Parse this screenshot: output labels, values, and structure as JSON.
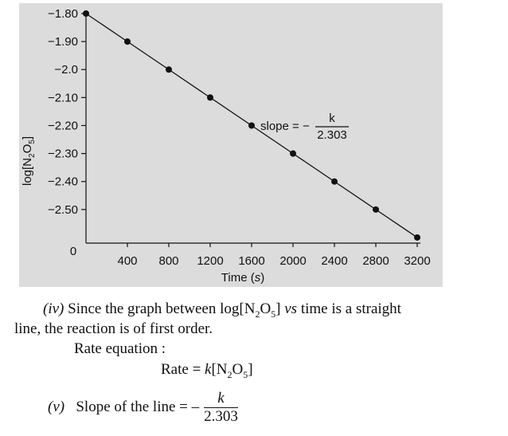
{
  "chart_data": {
    "type": "line",
    "xlabel": "Time (s)",
    "ylabel": "log[N2O5]",
    "x_ticks": [
      "400",
      "800",
      "1200",
      "1600",
      "2000",
      "2400",
      "2800",
      "3200"
    ],
    "y_ticks": [
      "−1.80",
      "−1.90",
      "−2.0",
      "−2.10",
      "−2.20",
      "−2.30",
      "−2.40",
      "−2.50"
    ],
    "origin_label": "0",
    "xlim": [
      0,
      3200
    ],
    "ylim": [
      -2.62,
      -1.8
    ],
    "grid": false,
    "series": [
      {
        "x": [
          0,
          400,
          800,
          1200,
          1600,
          2000,
          2400,
          2800,
          3200
        ],
        "y": [
          -1.8,
          -1.9,
          -2.0,
          -2.1,
          -2.2,
          -2.3,
          -2.4,
          -2.5,
          -2.6
        ]
      }
    ],
    "annotation": {
      "text": "slope = −",
      "num": "k",
      "den": "2.303"
    }
  },
  "text": {
    "p4_roman": "(iv)",
    "p4_a": " Since the graph between log[N",
    "p4_sub1": "2",
    "p4_b": "O",
    "p4_sub2": "5",
    "p4_c": "] ",
    "p4_vs": "vs",
    "p4_d": " time is a straight",
    "p4_line2": "line, the reaction is of first order.",
    "rate_eq_label": "Rate equation :",
    "rate_lhs": "Rate  =  ",
    "rate_k": "k",
    "rate_a": "[N",
    "rate_sub1": "2",
    "rate_b": "O",
    "rate_sub2": "5",
    "rate_c": "]",
    "p5_roman": "(v)",
    "p5_text": "Slope of the line  =  –",
    "p5_num": "k",
    "p5_den": "2.303"
  }
}
